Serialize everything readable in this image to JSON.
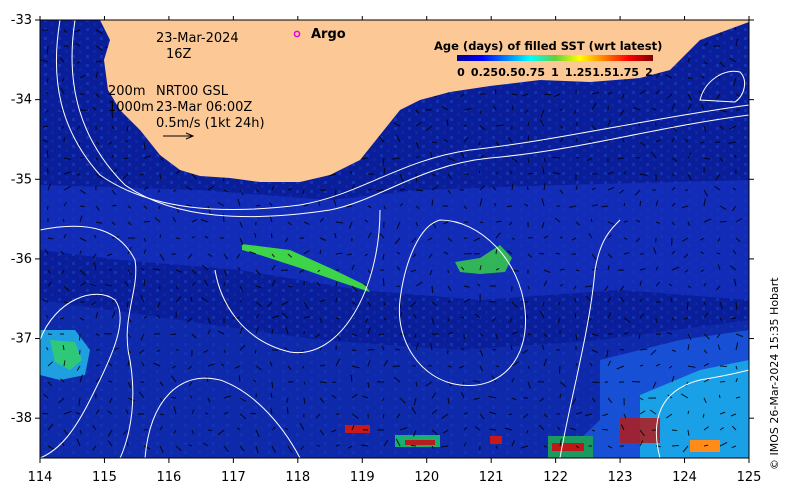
{
  "map": {
    "date": "23-Mar-2024",
    "time": "16Z",
    "argo_label": "Argo",
    "isobath_labels": [
      "200m",
      "1000m"
    ],
    "current_source": "NRT00 GSL",
    "current_time": "23-Mar 06:00Z",
    "vector_scale": "0.5m/s (1kt 24h)",
    "credit": "© IMOS 26-Mar-2024 15:35 Hobart",
    "lon_ticks": [
      114,
      115,
      116,
      117,
      118,
      119,
      120,
      121,
      122,
      123,
      124,
      125
    ],
    "lat_ticks": [
      -33,
      -34,
      -35,
      -36,
      -37,
      -38
    ],
    "lon_range": [
      114,
      125
    ],
    "lat_range": [
      -38.5,
      -33
    ],
    "colors": {
      "land": "#fcc896",
      "background": "#0a1e9a",
      "argo": "#e600e6"
    }
  },
  "colorbar": {
    "title": "Age (days) of filled SST (wrt latest)",
    "tick_labels": [
      "0",
      "0.25",
      "0.5",
      "0.75",
      "1",
      "1.25",
      "1.5",
      "1.75",
      "2"
    ],
    "colors": [
      "#00008f",
      "#0000ff",
      "#0080ff",
      "#00ffff",
      "#80ff80",
      "#ffff00",
      "#ff8000",
      "#ff0000",
      "#800000"
    ]
  }
}
